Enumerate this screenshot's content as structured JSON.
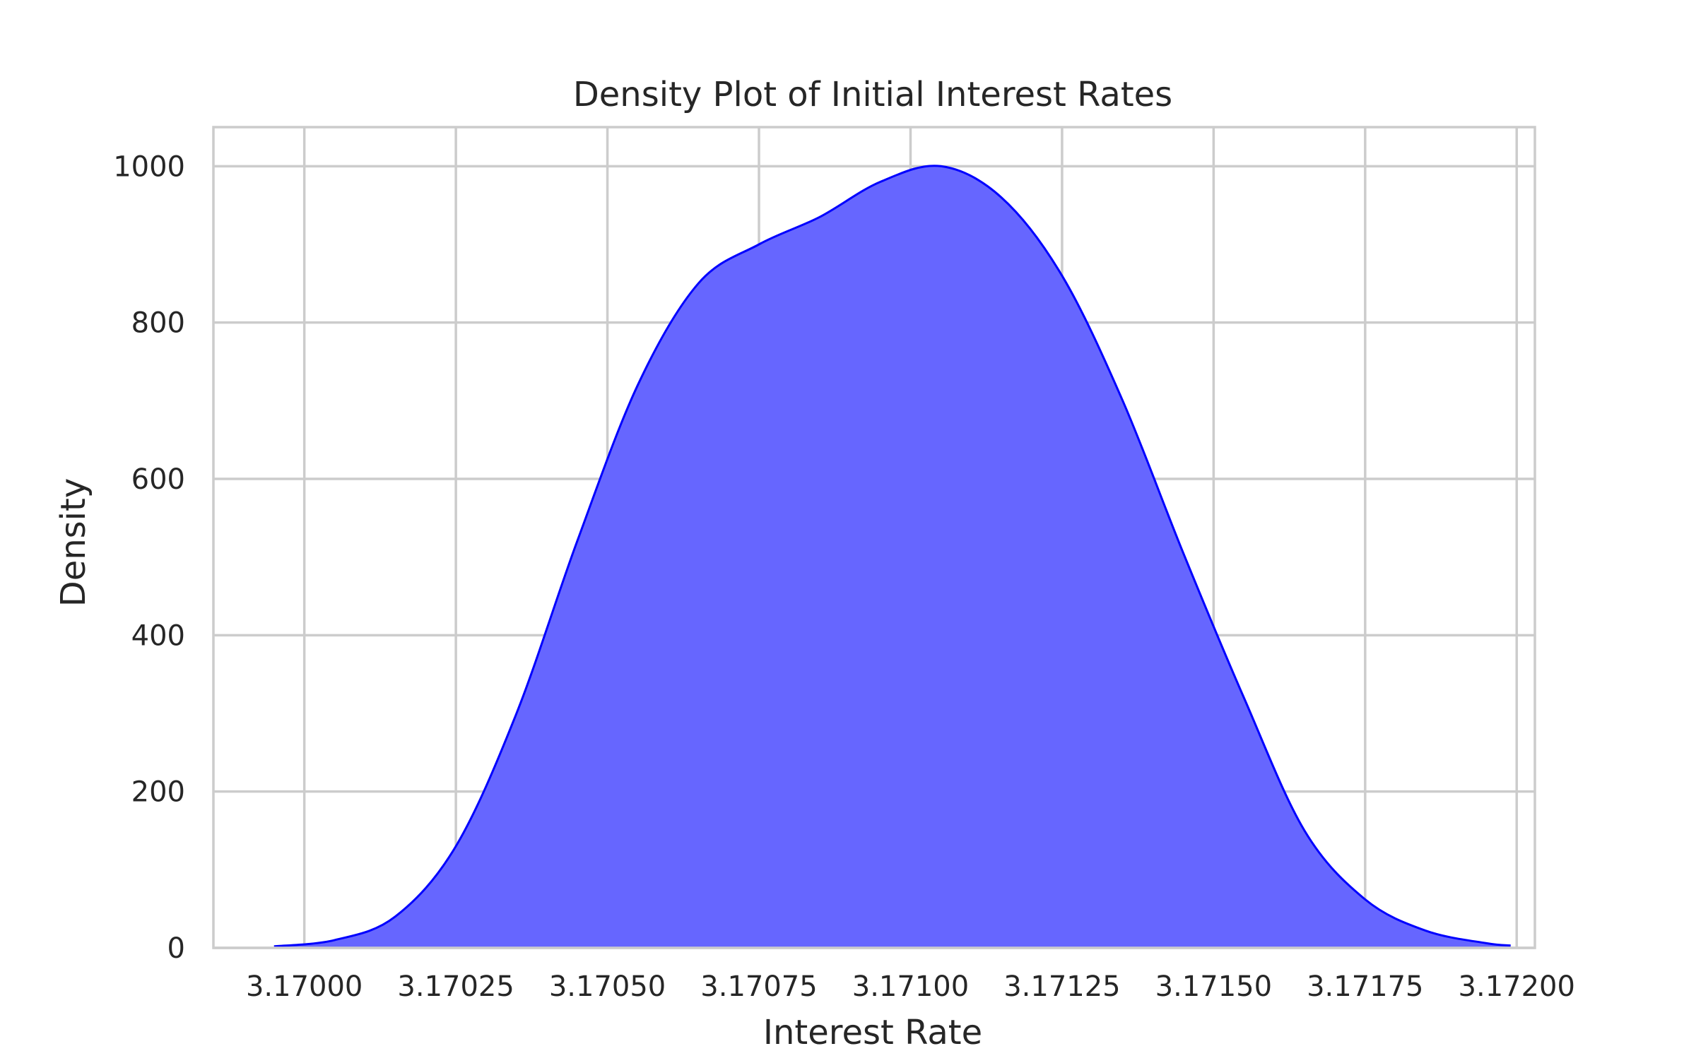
{
  "chart_data": {
    "type": "area",
    "title": "Density Plot of Initial Interest Rates",
    "xlabel": "Interest Rate",
    "ylabel": "Density",
    "xlim": [
      3.16985,
      3.17203
    ],
    "ylim": [
      0,
      1050
    ],
    "xticks": [
      3.17,
      3.17025,
      3.1705,
      3.17075,
      3.171,
      3.17125,
      3.1715,
      3.17175,
      3.172
    ],
    "xtick_labels": [
      "3.17000",
      "3.17025",
      "3.17050",
      "3.17075",
      "3.17100",
      "3.17125",
      "3.17150",
      "3.17175",
      "3.17200"
    ],
    "yticks": [
      0,
      200,
      400,
      600,
      800,
      1000
    ],
    "ytick_labels": [
      "0",
      "200",
      "400",
      "600",
      "800",
      "1000"
    ],
    "grid": true,
    "fill_color": "#6666ff",
    "line_color": "#0000ff",
    "series": [
      {
        "x": [
          3.16995,
          3.17005,
          3.17015,
          3.17025,
          3.17035,
          3.17045,
          3.17055,
          3.17065,
          3.17075,
          3.17085,
          3.17095,
          3.17105,
          3.17115,
          3.17125,
          3.17135,
          3.17145,
          3.17155,
          3.17165,
          3.17175,
          3.17185,
          3.17195,
          3.17199
        ],
        "y": [
          2,
          10,
          40,
          130,
          300,
          520,
          720,
          850,
          900,
          935,
          980,
          1000,
          960,
          860,
          700,
          505,
          320,
          150,
          62,
          22,
          6,
          3
        ]
      }
    ]
  }
}
